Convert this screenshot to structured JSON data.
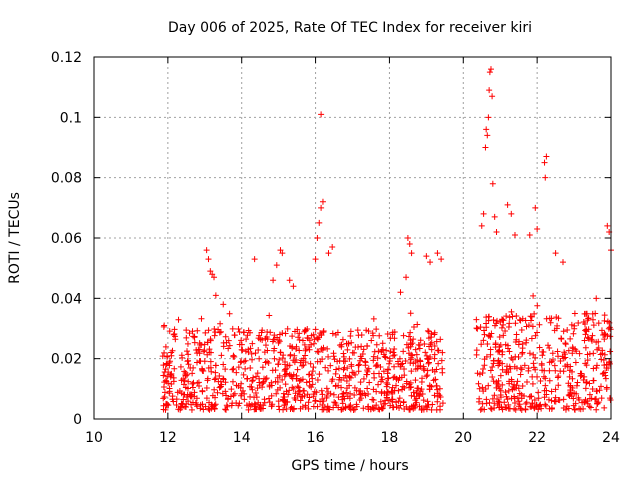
{
  "chart_data": {
    "type": "scatter",
    "title": "Day 006 of 2025, Rate Of TEC Index for receiver kiri",
    "xlabel": "GPS time / hours",
    "ylabel": "ROTI / TECUs",
    "xlim": [
      10,
      24
    ],
    "ylim": [
      0,
      0.12
    ],
    "x_ticks": [
      10,
      12,
      14,
      16,
      18,
      20,
      22,
      24
    ],
    "x_tick_labels": [
      "10",
      "12",
      "14",
      "16",
      "18",
      "20",
      "22",
      "24"
    ],
    "y_ticks": [
      0,
      0.02,
      0.04,
      0.06,
      0.08,
      0.1,
      0.12
    ],
    "y_tick_labels": [
      "0",
      "0.02",
      "0.04",
      "0.06",
      "0.08",
      "0.1",
      "0.12"
    ],
    "grid": true,
    "marker": "+",
    "series_color": "#ff0000",
    "data_segments": [
      {
        "x_start": 11.85,
        "x_end": 19.45,
        "typical_range": [
          0.003,
          0.03
        ]
      },
      {
        "x_start": 20.35,
        "x_end": 24.0,
        "typical_range": [
          0.003,
          0.035
        ]
      }
    ],
    "notable_points": [
      {
        "x": 11.9,
        "y": 0.031
      },
      {
        "x": 13.05,
        "y": 0.056
      },
      {
        "x": 13.1,
        "y": 0.053
      },
      {
        "x": 13.15,
        "y": 0.049
      },
      {
        "x": 13.2,
        "y": 0.048
      },
      {
        "x": 13.25,
        "y": 0.047
      },
      {
        "x": 13.3,
        "y": 0.041
      },
      {
        "x": 13.5,
        "y": 0.038
      },
      {
        "x": 14.35,
        "y": 0.053
      },
      {
        "x": 14.85,
        "y": 0.046
      },
      {
        "x": 14.95,
        "y": 0.051
      },
      {
        "x": 15.05,
        "y": 0.056
      },
      {
        "x": 15.1,
        "y": 0.055
      },
      {
        "x": 15.3,
        "y": 0.046
      },
      {
        "x": 15.4,
        "y": 0.044
      },
      {
        "x": 16.0,
        "y": 0.053
      },
      {
        "x": 16.05,
        "y": 0.06
      },
      {
        "x": 16.1,
        "y": 0.065
      },
      {
        "x": 16.15,
        "y": 0.07
      },
      {
        "x": 16.2,
        "y": 0.072
      },
      {
        "x": 16.15,
        "y": 0.101
      },
      {
        "x": 16.35,
        "y": 0.055
      },
      {
        "x": 16.45,
        "y": 0.057
      },
      {
        "x": 18.3,
        "y": 0.042
      },
      {
        "x": 18.45,
        "y": 0.047
      },
      {
        "x": 18.5,
        "y": 0.06
      },
      {
        "x": 18.55,
        "y": 0.058
      },
      {
        "x": 18.6,
        "y": 0.055
      },
      {
        "x": 19.0,
        "y": 0.054
      },
      {
        "x": 19.1,
        "y": 0.052
      },
      {
        "x": 19.3,
        "y": 0.055
      },
      {
        "x": 19.4,
        "y": 0.053
      },
      {
        "x": 20.5,
        "y": 0.064
      },
      {
        "x": 20.55,
        "y": 0.068
      },
      {
        "x": 20.6,
        "y": 0.09
      },
      {
        "x": 20.62,
        "y": 0.096
      },
      {
        "x": 20.65,
        "y": 0.094
      },
      {
        "x": 20.68,
        "y": 0.1
      },
      {
        "x": 20.7,
        "y": 0.109
      },
      {
        "x": 20.72,
        "y": 0.115
      },
      {
        "x": 20.75,
        "y": 0.116
      },
      {
        "x": 20.78,
        "y": 0.107
      },
      {
        "x": 20.8,
        "y": 0.078
      },
      {
        "x": 20.85,
        "y": 0.067
      },
      {
        "x": 20.9,
        "y": 0.062
      },
      {
        "x": 21.2,
        "y": 0.071
      },
      {
        "x": 21.3,
        "y": 0.068
      },
      {
        "x": 21.4,
        "y": 0.061
      },
      {
        "x": 21.8,
        "y": 0.061
      },
      {
        "x": 21.95,
        "y": 0.07
      },
      {
        "x": 22.0,
        "y": 0.063
      },
      {
        "x": 22.2,
        "y": 0.085
      },
      {
        "x": 22.25,
        "y": 0.087
      },
      {
        "x": 22.22,
        "y": 0.08
      },
      {
        "x": 22.5,
        "y": 0.055
      },
      {
        "x": 22.7,
        "y": 0.052
      },
      {
        "x": 23.6,
        "y": 0.04
      },
      {
        "x": 23.9,
        "y": 0.064
      },
      {
        "x": 23.95,
        "y": 0.062
      },
      {
        "x": 24.0,
        "y": 0.056
      }
    ]
  }
}
